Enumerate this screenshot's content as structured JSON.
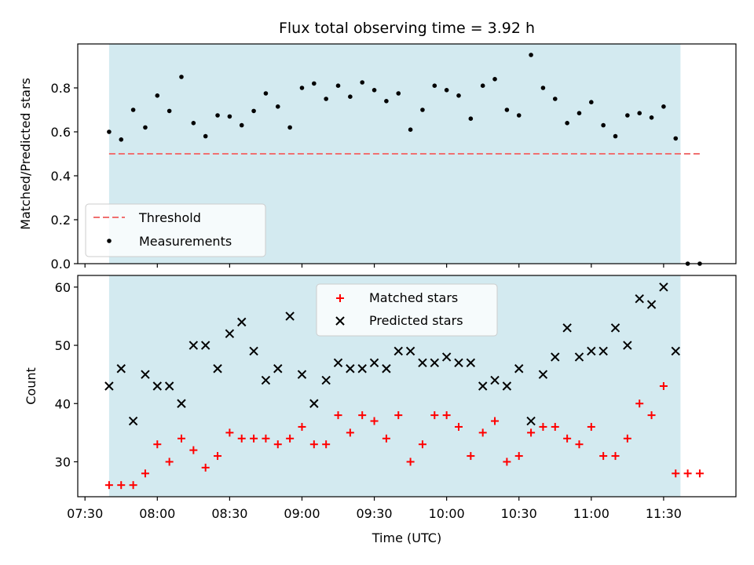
{
  "chart_data": [
    {
      "type": "scatter",
      "title": "Flux total observing time = 3.92 h",
      "xlabel": "",
      "ylabel": "Matched/Predicted stars",
      "ylim": [
        0,
        1.0
      ],
      "yticks": [
        "0.0",
        "0.2",
        "0.4",
        "0.6",
        "0.8"
      ],
      "xlim": [
        "07:27",
        "12:00"
      ],
      "observing_window": [
        "07:40",
        "11:37"
      ],
      "observing_window_color": "#d3eaf0",
      "threshold": {
        "name": "Threshold",
        "value": 0.5,
        "x": [
          "07:40",
          "11:45"
        ],
        "color": "#f07070"
      },
      "series": [
        {
          "name": "Measurements",
          "color": "#000000",
          "marker": "dot",
          "x": [
            "07:40",
            "07:45",
            "07:50",
            "07:55",
            "08:00",
            "08:05",
            "08:10",
            "08:15",
            "08:20",
            "08:25",
            "08:30",
            "08:35",
            "08:40",
            "08:45",
            "08:50",
            "08:55",
            "09:00",
            "09:05",
            "09:10",
            "09:15",
            "09:20",
            "09:25",
            "09:30",
            "09:35",
            "09:40",
            "09:45",
            "09:50",
            "09:55",
            "10:00",
            "10:05",
            "10:10",
            "10:15",
            "10:20",
            "10:25",
            "10:30",
            "10:35",
            "10:40",
            "10:45",
            "10:50",
            "10:55",
            "11:00",
            "11:05",
            "11:10",
            "11:15",
            "11:20",
            "11:25",
            "11:30",
            "11:35",
            "11:40",
            "11:45"
          ],
          "y": [
            0.6,
            0.565,
            0.7,
            0.62,
            0.765,
            0.695,
            0.85,
            0.64,
            0.58,
            0.675,
            0.67,
            0.63,
            0.695,
            0.775,
            0.715,
            0.62,
            0.8,
            0.82,
            0.75,
            0.81,
            0.76,
            0.825,
            0.79,
            0.74,
            0.775,
            0.61,
            0.7,
            0.81,
            0.79,
            0.765,
            0.66,
            0.81,
            0.84,
            0.7,
            0.675,
            0.95,
            0.8,
            0.75,
            0.64,
            0.685,
            0.735,
            0.63,
            0.58,
            0.675,
            0.685,
            0.665,
            0.715,
            0.57,
            0.0,
            0.0
          ]
        }
      ],
      "legend": {
        "placement": "lower-left",
        "entries": [
          "Threshold",
          "Measurements"
        ]
      }
    },
    {
      "type": "scatter",
      "xlabel": "Time (UTC)",
      "ylabel": "Count",
      "ylim": [
        24,
        62
      ],
      "yticks": [
        "30",
        "40",
        "50",
        "60"
      ],
      "xticks": [
        "07:30",
        "08:00",
        "08:30",
        "09:00",
        "09:30",
        "10:00",
        "10:30",
        "11:00",
        "11:30"
      ],
      "xlim": [
        "07:27",
        "12:00"
      ],
      "series": [
        {
          "name": "Matched stars",
          "color": "#ff0000",
          "marker": "plus",
          "x": [
            "07:40",
            "07:45",
            "07:50",
            "07:55",
            "08:00",
            "08:05",
            "08:10",
            "08:15",
            "08:20",
            "08:25",
            "08:30",
            "08:35",
            "08:40",
            "08:45",
            "08:50",
            "08:55",
            "09:00",
            "09:05",
            "09:10",
            "09:15",
            "09:20",
            "09:25",
            "09:30",
            "09:35",
            "09:40",
            "09:45",
            "09:50",
            "09:55",
            "10:00",
            "10:05",
            "10:10",
            "10:15",
            "10:20",
            "10:25",
            "10:30",
            "10:35",
            "10:40",
            "10:45",
            "10:50",
            "10:55",
            "11:00",
            "11:05",
            "11:10",
            "11:15",
            "11:20",
            "11:25",
            "11:30",
            "11:35",
            "11:40",
            "11:45"
          ],
          "y": [
            26,
            26,
            26,
            28,
            33,
            30,
            34,
            32,
            29,
            31,
            35,
            34,
            34,
            34,
            33,
            34,
            36,
            33,
            33,
            38,
            35,
            38,
            37,
            34,
            38,
            30,
            33,
            38,
            38,
            36,
            31,
            35,
            37,
            30,
            31,
            35,
            36,
            36,
            34,
            33,
            36,
            31,
            31,
            34,
            40,
            38,
            43,
            28,
            28,
            28
          ]
        },
        {
          "name": "Predicted stars",
          "color": "#000000",
          "marker": "x",
          "x": [
            "07:40",
            "07:45",
            "07:50",
            "07:55",
            "08:00",
            "08:05",
            "08:10",
            "08:15",
            "08:20",
            "08:25",
            "08:30",
            "08:35",
            "08:40",
            "08:45",
            "08:50",
            "08:55",
            "09:00",
            "09:05",
            "09:10",
            "09:15",
            "09:20",
            "09:25",
            "09:30",
            "09:35",
            "09:40",
            "09:45",
            "09:50",
            "09:55",
            "10:00",
            "10:05",
            "10:10",
            "10:15",
            "10:20",
            "10:25",
            "10:30",
            "10:35",
            "10:40",
            "10:45",
            "10:50",
            "10:55",
            "11:00",
            "11:05",
            "11:10",
            "11:15",
            "11:20",
            "11:25",
            "11:30",
            "11:35"
          ],
          "y": [
            43,
            46,
            37,
            45,
            43,
            43,
            40,
            50,
            50,
            46,
            52,
            54,
            49,
            44,
            46,
            55,
            45,
            40,
            44,
            47,
            46,
            46,
            47,
            46,
            49,
            49,
            47,
            47,
            48,
            47,
            47,
            43,
            44,
            43,
            46,
            37,
            45,
            48,
            53,
            48,
            49,
            49,
            53,
            50,
            58,
            57,
            60,
            49
          ]
        }
      ],
      "legend": {
        "placement": "upper-center",
        "entries": [
          "Matched stars",
          "Predicted stars"
        ]
      }
    }
  ]
}
